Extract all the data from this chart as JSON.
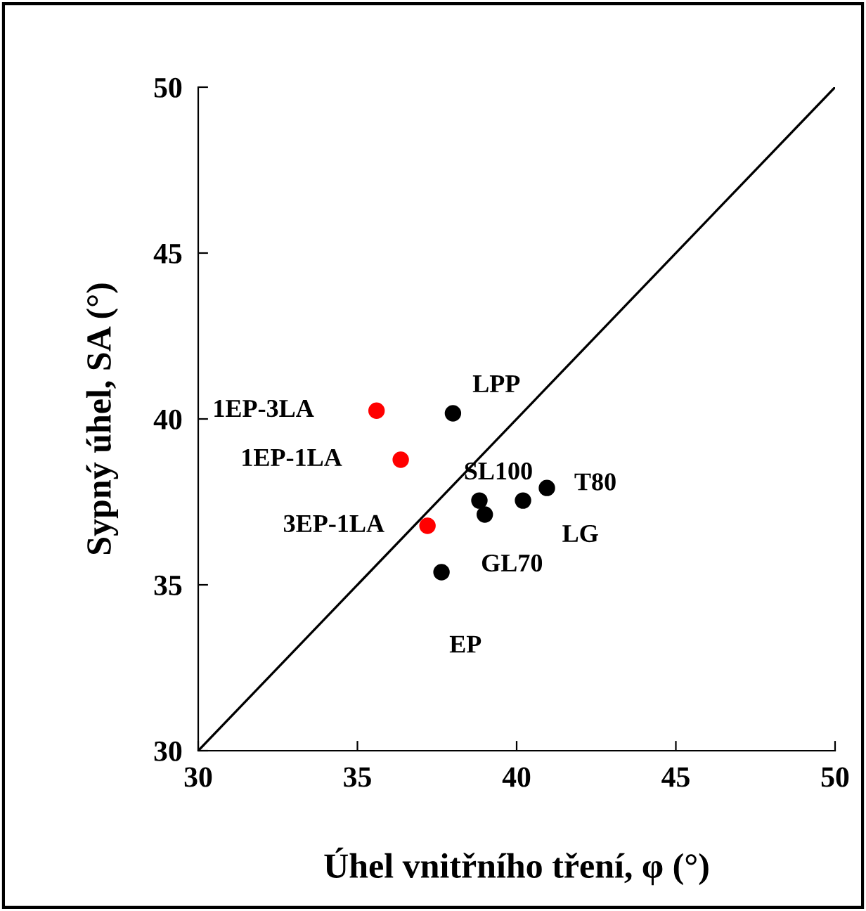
{
  "chart_data": {
    "type": "scatter",
    "xlabel": "Úhel vnitřního tření, φ (°)",
    "ylabel": "Sypný úhel, SA (°)",
    "xlim": [
      30,
      50
    ],
    "ylim": [
      30,
      50
    ],
    "xticks": [
      30,
      35,
      40,
      45,
      50
    ],
    "yticks": [
      30,
      35,
      40,
      45,
      50
    ],
    "grid": false,
    "legend": false,
    "marker": "circle",
    "series": [
      {
        "x": [
          35.6,
          36.36,
          37.2,
          38.0,
          38.83,
          39.0,
          40.2,
          40.95,
          37.64
        ],
        "values": [
          40.25,
          38.77,
          36.78,
          40.17,
          37.54,
          37.12,
          37.54,
          37.92,
          35.38
        ],
        "colors": [
          "#ff0000",
          "#ff0000",
          "#ff0000",
          "#000000",
          "#000000",
          "#000000",
          "#000000",
          "#000000",
          "#000000"
        ]
      },
      {
        "type": "line",
        "x": [
          30,
          50
        ],
        "values": [
          30,
          50
        ],
        "color": "#000000",
        "line_style": "solid",
        "marker": "none"
      }
    ],
    "annotations": [
      {
        "text": "1EP-3LA",
        "x": 35.6,
        "y": 40.25
      },
      {
        "text": "1EP-1LA",
        "x": 36.36,
        "y": 38.77
      },
      {
        "text": "3EP-1LA",
        "x": 37.2,
        "y": 36.78
      },
      {
        "text": "LPP",
        "x": 38.0,
        "y": 40.17
      },
      {
        "text": "SL100",
        "x": 38.83,
        "y": 37.54
      },
      {
        "text": "GL70",
        "x": 39.0,
        "y": 37.12
      },
      {
        "text": "LG",
        "x": 40.2,
        "y": 37.54
      },
      {
        "text": "T80",
        "x": 40.95,
        "y": 37.92
      },
      {
        "text": "EP",
        "x": 37.64,
        "y": 35.38
      }
    ]
  }
}
